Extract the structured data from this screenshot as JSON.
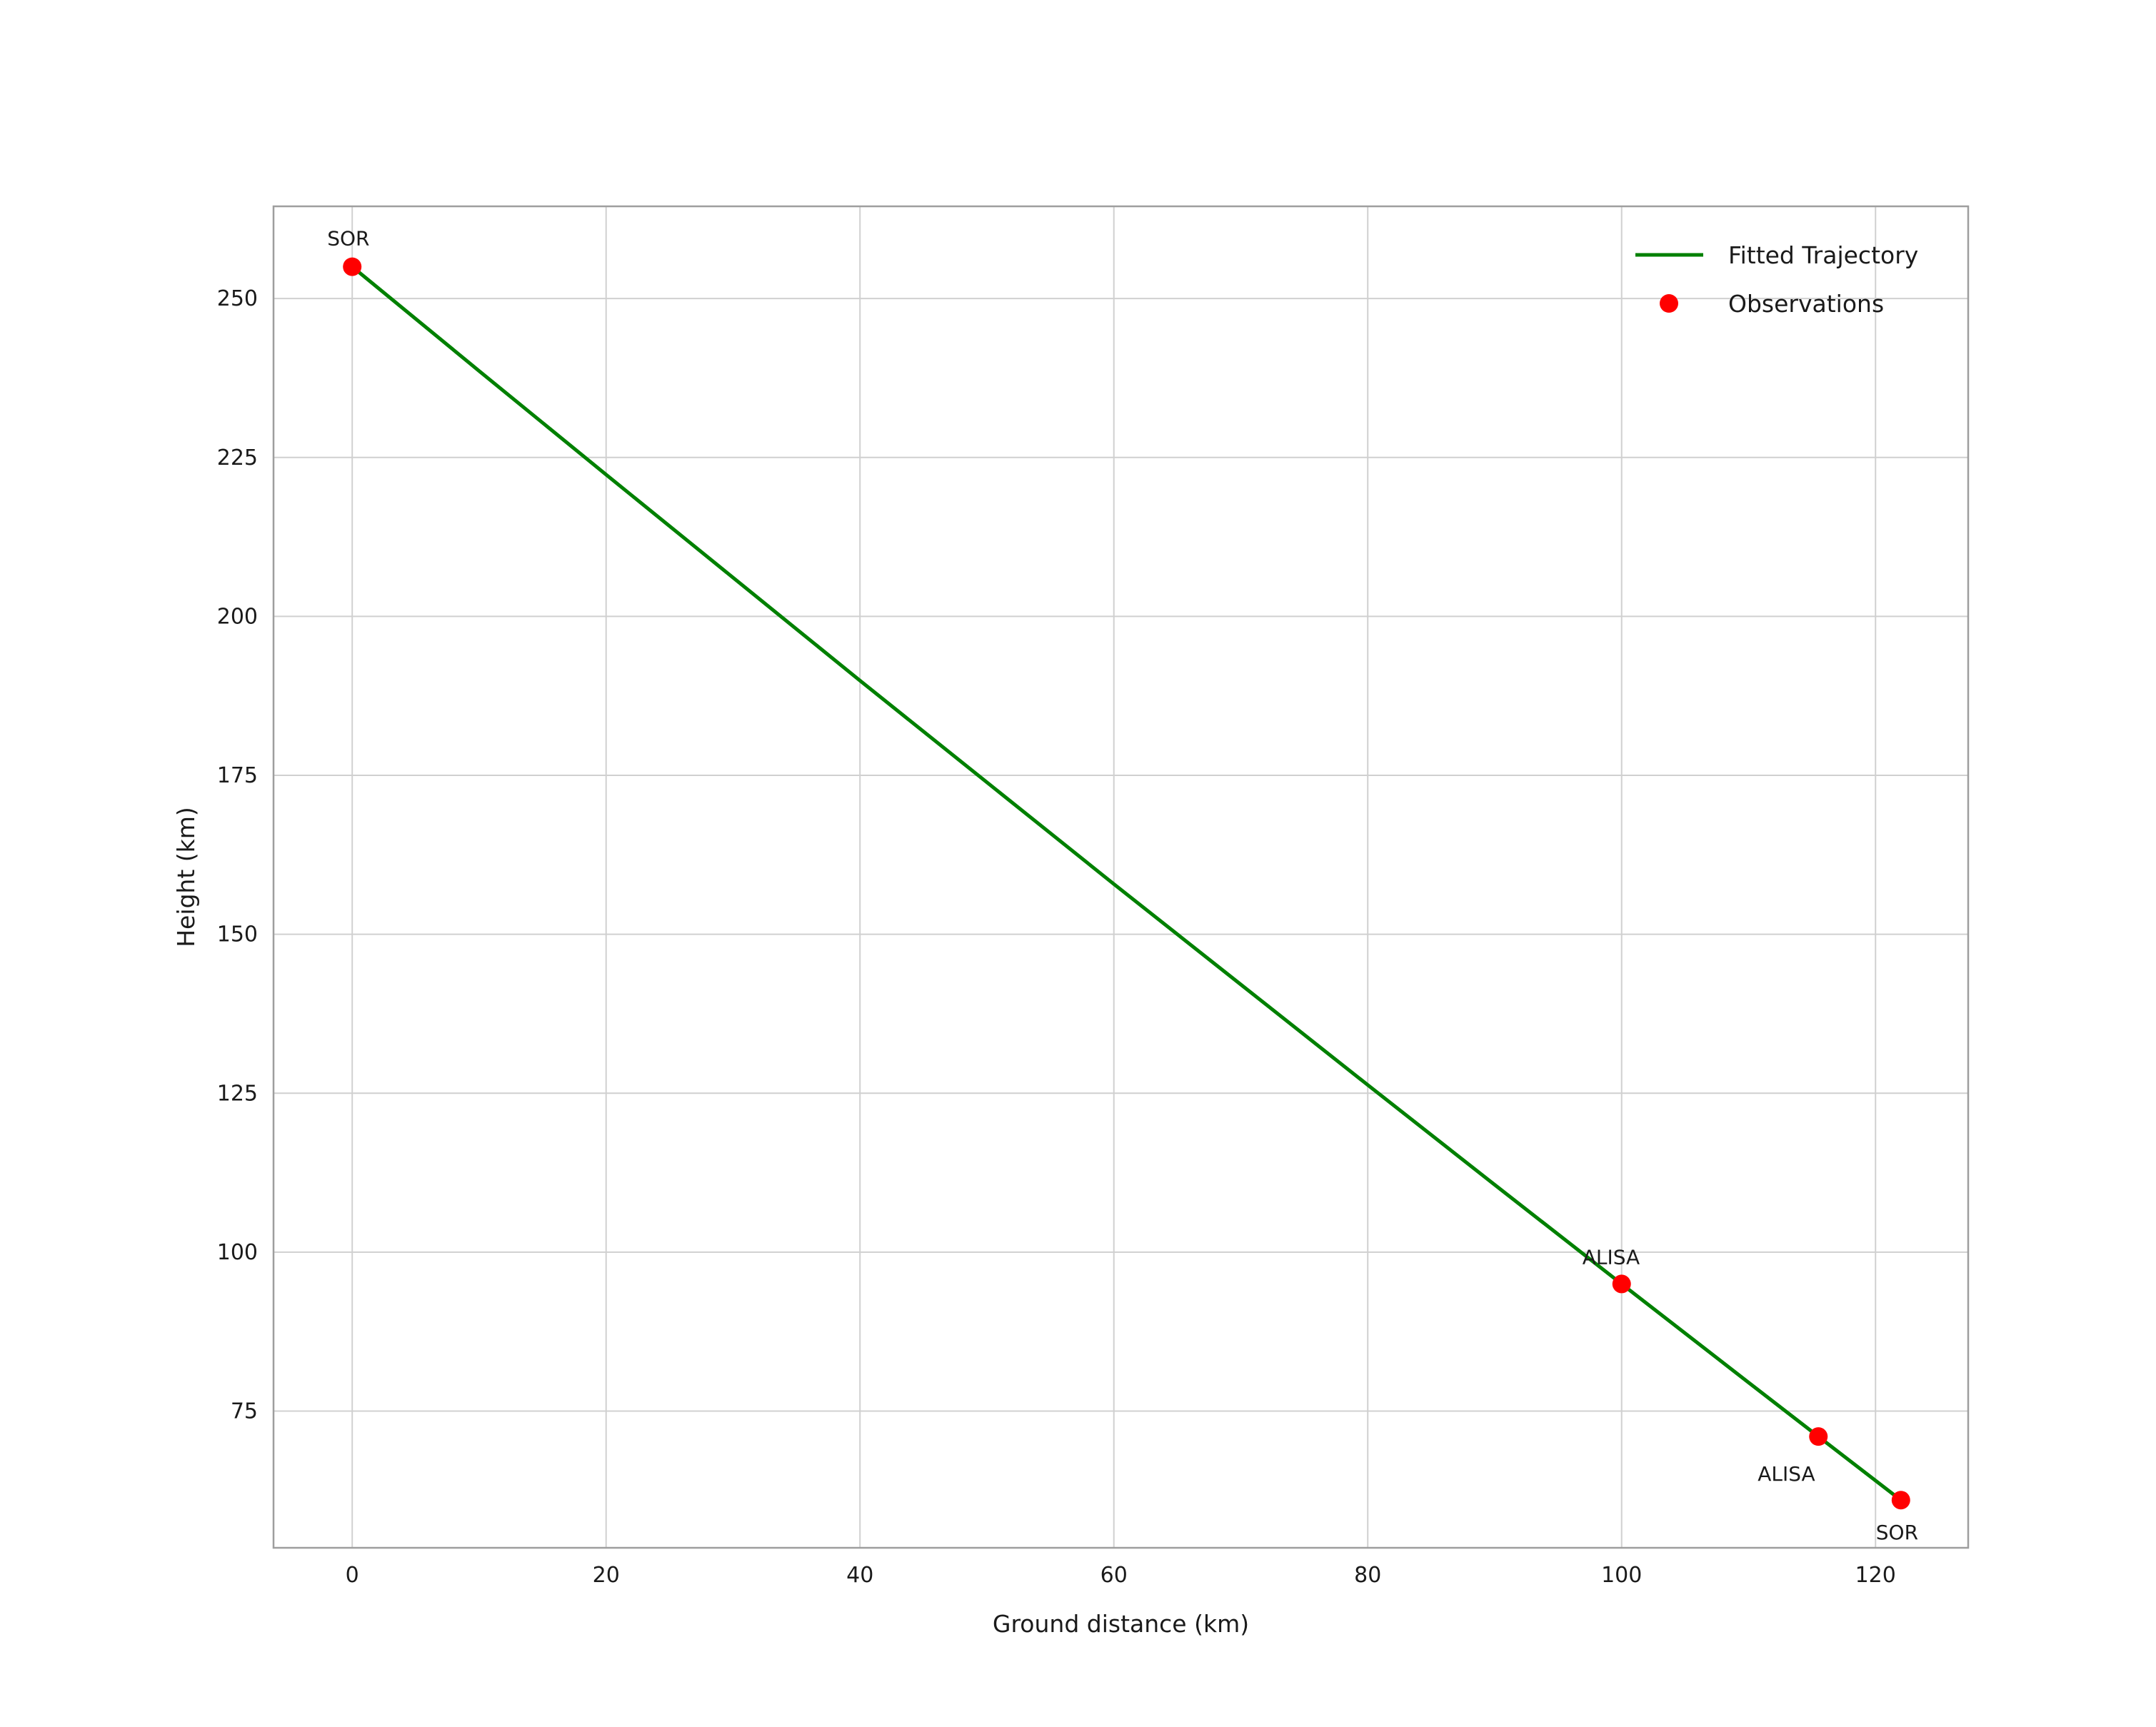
{
  "page": {
    "background": "#ffffff",
    "text_color": "#1a1a1a",
    "grid_color": "#d0d0d0",
    "border_color": "#9e9e9e"
  },
  "chart_data": {
    "type": "line+scatter",
    "title": "",
    "xlabel": "Ground distance (km)",
    "ylabel": "Height (km)",
    "xlim": [
      -6.2,
      127.3
    ],
    "ylim": [
      53.5,
      264.5
    ],
    "xticks": [
      0,
      20,
      40,
      60,
      80,
      100,
      120
    ],
    "yticks": [
      75,
      100,
      125,
      150,
      175,
      200,
      225,
      250
    ],
    "grid": true,
    "legend_position": "upper right",
    "series": [
      {
        "name": "Fitted Trajectory",
        "type": "line",
        "color": "#008000",
        "stroke_width": 5,
        "points": [
          [
            0,
            255.0
          ],
          [
            10,
            238.6
          ],
          [
            20,
            222.3
          ],
          [
            30,
            206.1
          ],
          [
            40,
            189.9
          ],
          [
            50,
            173.9
          ],
          [
            60,
            157.9
          ],
          [
            70,
            142.1
          ],
          [
            80,
            126.3
          ],
          [
            90,
            110.6
          ],
          [
            100,
            95.0
          ],
          [
            110,
            79.5
          ],
          [
            115.5,
            71.0
          ],
          [
            122,
            61.0
          ]
        ]
      },
      {
        "name": "Observations",
        "type": "scatter",
        "color": "#ff0000",
        "radius": 13,
        "points": [
          {
            "x": 0,
            "y": 255,
            "label": "SOR",
            "label_dx": -35,
            "label_dy": -30,
            "anchor": "start"
          },
          {
            "x": 100,
            "y": 95,
            "label": "ALISA",
            "label_dx": -55,
            "label_dy": -28,
            "anchor": "start"
          },
          {
            "x": 115.5,
            "y": 71,
            "label": "ALISA",
            "label_dx": -85,
            "label_dy": 62,
            "anchor": "start"
          },
          {
            "x": 122,
            "y": 61,
            "label": "SOR",
            "label_dx": -35,
            "label_dy": 55,
            "anchor": "start"
          }
        ]
      }
    ],
    "legend": {
      "entries": [
        {
          "label": "Fitted Trajectory",
          "marker": "line",
          "color": "#008000"
        },
        {
          "label": "Observations",
          "marker": "dot",
          "color": "#ff0000"
        }
      ]
    }
  }
}
